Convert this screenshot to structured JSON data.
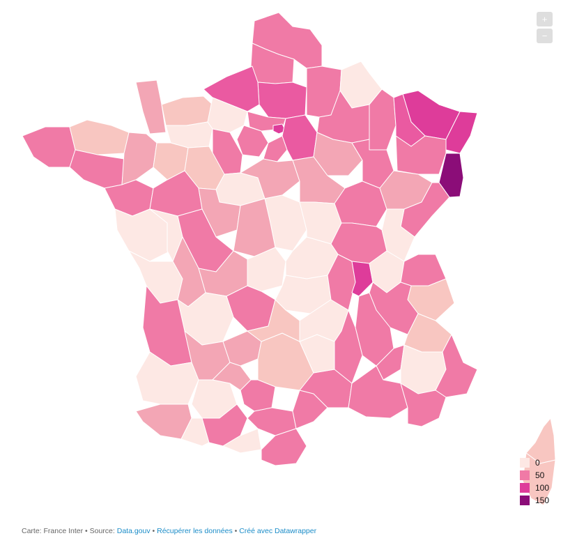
{
  "colors": {
    "c0": "#fde8e4",
    "c25": "#f8c6c1",
    "c35": "#f3a6b5",
    "c50": "#f07aa6",
    "c75": "#ea5aa1",
    "c100": "#de3c9a",
    "c150": "#8b0d78"
  },
  "zoom": {
    "in_label": "+",
    "out_label": "−"
  },
  "legend": [
    {
      "label": "0",
      "color": "#fde8e4"
    },
    {
      "label": "50",
      "color": "#f07aa6"
    },
    {
      "label": "100",
      "color": "#de3c9a"
    },
    {
      "label": "150",
      "color": "#8b0d78"
    }
  ],
  "footer": {
    "prefix": "Carte: France Inter • Source: ",
    "source_link": "Data.gouv",
    "sep1": " • ",
    "data_link": "Récupérer les données",
    "sep2": " • ",
    "made_link": "Créé avec Datawrapper"
  }
}
